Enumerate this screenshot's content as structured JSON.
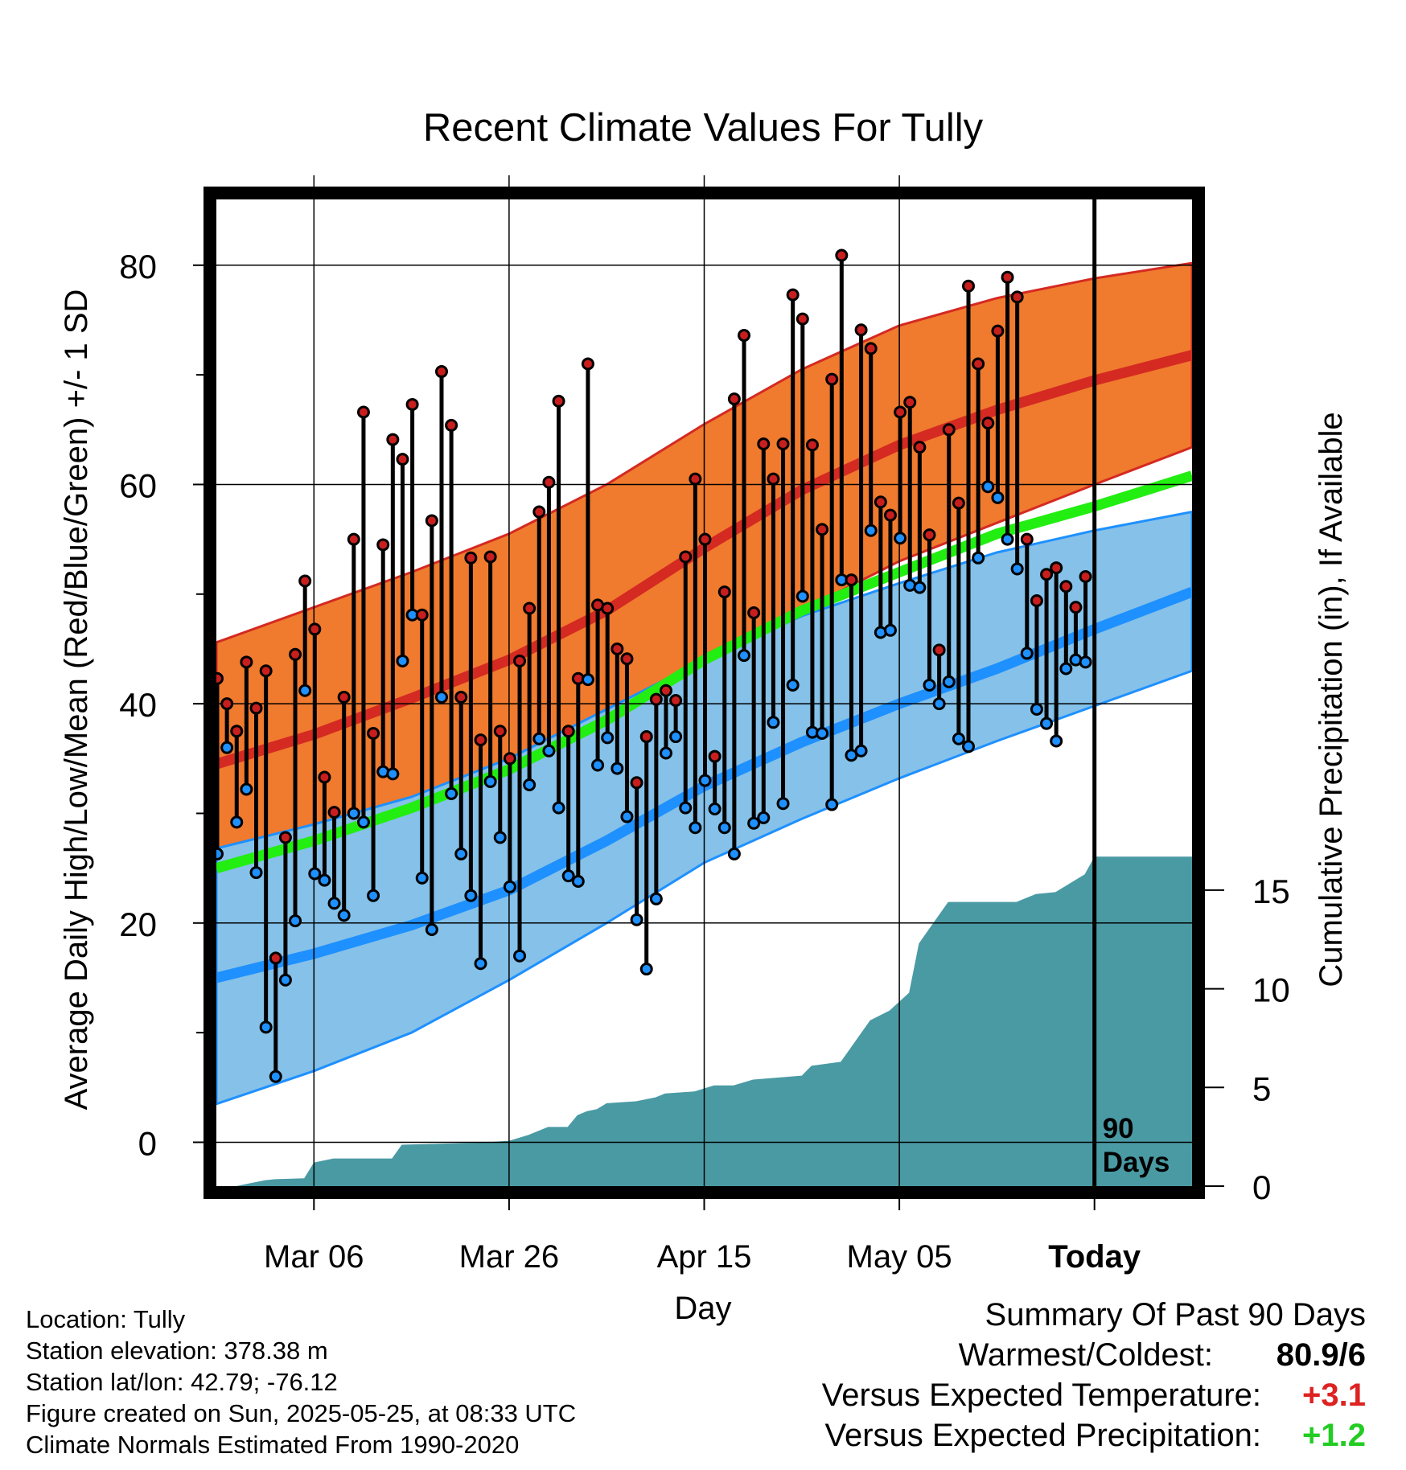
{
  "chart_data": {
    "type": "line",
    "title": "Recent Climate Values For Tully",
    "xlabel": "Day",
    "ylabel": "Average Daily High/Low/Mean (Red/Blue/Green) +/- 1 SD",
    "y2label": "Cumulative Precipitation (in), If Available",
    "x_ticks": [
      "Mar 06",
      "Mar 26",
      "Apr 15",
      "May 05",
      "Today"
    ],
    "x_tick_day_index": [
      10,
      30,
      50,
      70,
      90
    ],
    "x_range": [
      0,
      100
    ],
    "ylim": [
      -4,
      86
    ],
    "y_ticks": [
      0,
      20,
      40,
      60,
      80
    ],
    "y2lim": [
      0,
      50
    ],
    "y2_ticks": [
      0,
      5,
      10,
      15
    ],
    "today_label": "90\nDays",
    "grid": true,
    "colors": {
      "high_band": "#f07a2e",
      "high_mean": "#d42a22",
      "low_band": "#85c1e8",
      "low_mean": "#1e90ff",
      "mean_line": "#22ee11",
      "precip": "#4a9aa4",
      "obs_high_dot": "#c81e1e",
      "obs_low_dot": "#1e90ff"
    },
    "normals": {
      "day_index": [
        0,
        10,
        20,
        30,
        40,
        50,
        60,
        70,
        80,
        90,
        100
      ],
      "high_mean": [
        34.5,
        37.2,
        40.5,
        44.0,
        48.5,
        54.2,
        59.5,
        63.6,
        66.8,
        69.5,
        71.8
      ],
      "high_upper": [
        45.6,
        48.8,
        52.0,
        55.5,
        60.0,
        65.5,
        70.5,
        74.5,
        77.0,
        78.8,
        80.2
      ],
      "high_lower": [
        24.0,
        27.0,
        30.0,
        33.5,
        37.5,
        43.0,
        48.5,
        53.0,
        56.5,
        60.0,
        63.4
      ],
      "low_mean": [
        15.0,
        17.2,
        19.8,
        23.0,
        27.5,
        32.5,
        36.5,
        40.0,
        43.2,
        46.8,
        50.2
      ],
      "low_upper": [
        26.8,
        29.0,
        31.5,
        35.0,
        39.5,
        44.0,
        48.0,
        51.0,
        53.8,
        55.8,
        57.5
      ],
      "low_lower": [
        3.5,
        6.5,
        10.0,
        14.8,
        20.0,
        25.5,
        29.5,
        33.2,
        36.6,
        39.8,
        43.0
      ],
      "mean_line": [
        25.0,
        27.5,
        30.5,
        34.0,
        38.5,
        44.0,
        48.5,
        52.0,
        55.5,
        58.0,
        60.8
      ]
    },
    "observations": {
      "day_index": [
        0,
        1,
        2,
        3,
        4,
        5,
        6,
        7,
        8,
        9,
        10,
        11,
        12,
        13,
        14,
        15,
        16,
        17,
        18,
        19,
        20,
        21,
        22,
        23,
        24,
        25,
        26,
        27,
        28,
        29,
        30,
        31,
        32,
        33,
        34,
        35,
        36,
        37,
        38,
        39,
        40,
        41,
        42,
        43,
        44,
        45,
        46,
        47,
        48,
        49,
        50,
        51,
        52,
        53,
        54,
        55,
        56,
        57,
        58,
        59,
        60,
        61,
        62,
        63,
        64,
        65,
        66,
        67,
        68,
        69,
        70,
        71,
        72,
        73,
        74,
        75,
        76,
        77,
        78,
        79,
        80,
        81,
        82,
        83,
        84,
        85,
        86,
        87,
        88,
        89
      ],
      "high": [
        42.3,
        40.0,
        37.5,
        43.8,
        39.6,
        43.0,
        16.8,
        27.8,
        44.5,
        51.2,
        46.8,
        33.3,
        30.1,
        40.6,
        55.0,
        66.6,
        37.3,
        54.5,
        64.1,
        62.3,
        67.3,
        48.1,
        56.7,
        70.3,
        65.4,
        40.6,
        53.3,
        36.7,
        53.4,
        37.5,
        35.0,
        43.9,
        48.7,
        57.5,
        60.2,
        67.6,
        37.5,
        42.3,
        71.0,
        49.0,
        48.7,
        45.0,
        44.1,
        32.8,
        37.0,
        40.4,
        41.2,
        40.3,
        53.4,
        60.5,
        55.0,
        35.2,
        50.2,
        67.8,
        73.6,
        48.3,
        63.7,
        60.5,
        63.7,
        77.3,
        75.1,
        63.6,
        55.9,
        69.6,
        80.9,
        51.3,
        74.1,
        72.4,
        58.4,
        57.2,
        66.6,
        67.5,
        63.4,
        55.4,
        44.9,
        65.0,
        58.3,
        78.1,
        71.0,
        65.6,
        74.0,
        78.9,
        77.1,
        55.0,
        49.4,
        51.8,
        52.4,
        50.7,
        48.8,
        51.6
      ],
      "low": [
        26.3,
        36.0,
        29.2,
        32.2,
        24.6,
        10.5,
        6.0,
        14.8,
        20.2,
        41.2,
        24.5,
        23.9,
        21.8,
        20.7,
        30.0,
        29.2,
        22.5,
        33.8,
        33.6,
        43.9,
        48.1,
        24.1,
        19.4,
        40.6,
        31.8,
        26.3,
        22.5,
        16.3,
        32.9,
        27.8,
        23.3,
        17.0,
        32.6,
        36.8,
        35.7,
        30.5,
        24.3,
        23.8,
        42.2,
        34.4,
        36.9,
        34.1,
        29.7,
        20.3,
        15.8,
        22.2,
        35.5,
        37.0,
        30.5,
        28.7,
        33.0,
        30.4,
        28.7,
        26.3,
        44.4,
        29.1,
        29.6,
        38.3,
        30.9,
        41.7,
        49.8,
        37.4,
        37.3,
        30.8,
        51.3,
        35.3,
        35.7,
        55.8,
        46.5,
        46.7,
        55.1,
        50.8,
        50.6,
        41.7,
        40.0,
        42.0,
        36.8,
        36.1,
        53.3,
        59.8,
        58.8,
        55.0,
        52.3,
        44.6,
        39.5,
        38.2,
        36.6,
        43.2,
        44.0,
        43.8
      ]
    },
    "cumulative_precip": {
      "day_index": [
        2,
        5,
        6,
        9,
        10,
        12,
        13,
        18,
        19,
        27,
        30,
        32,
        34,
        36,
        37,
        38,
        39,
        40,
        43,
        45,
        46,
        49,
        51,
        53,
        55,
        60,
        61,
        64,
        67,
        69,
        71,
        72,
        73,
        75,
        82,
        84,
        86,
        89,
        90,
        100
      ],
      "values": [
        0.0,
        0.3,
        0.35,
        0.4,
        1.2,
        1.4,
        1.4,
        1.4,
        2.1,
        2.2,
        2.3,
        2.6,
        3.0,
        3.0,
        3.6,
        3.8,
        3.9,
        4.2,
        4.3,
        4.5,
        4.7,
        4.8,
        5.1,
        5.1,
        5.4,
        5.6,
        6.1,
        6.3,
        8.4,
        8.9,
        9.8,
        12.3,
        13.0,
        14.4,
        14.4,
        14.8,
        14.9,
        15.8,
        16.7,
        16.7
      ]
    }
  },
  "location": "Location: Tully",
  "elevation": "Station elevation: 378.38 m",
  "latlon": "Station lat/lon: 42.79; -76.12",
  "created": "Figure created on Sun, 2025-05-25, at 08:33 UTC",
  "normals_note": "Climate Normals Estimated From 1990-2020",
  "summary": {
    "title": "Summary Of Past 90 Days",
    "warmest_label": "Warmest/Coldest:",
    "warmest_value": "80.9/6",
    "temp_label": "Versus Expected Temperature:",
    "temp_value": "+3.1",
    "temp_color": "#dd2222",
    "precip_label": "Versus Expected Precipitation:",
    "precip_value": "+1.2",
    "precip_color": "#22cc22"
  }
}
